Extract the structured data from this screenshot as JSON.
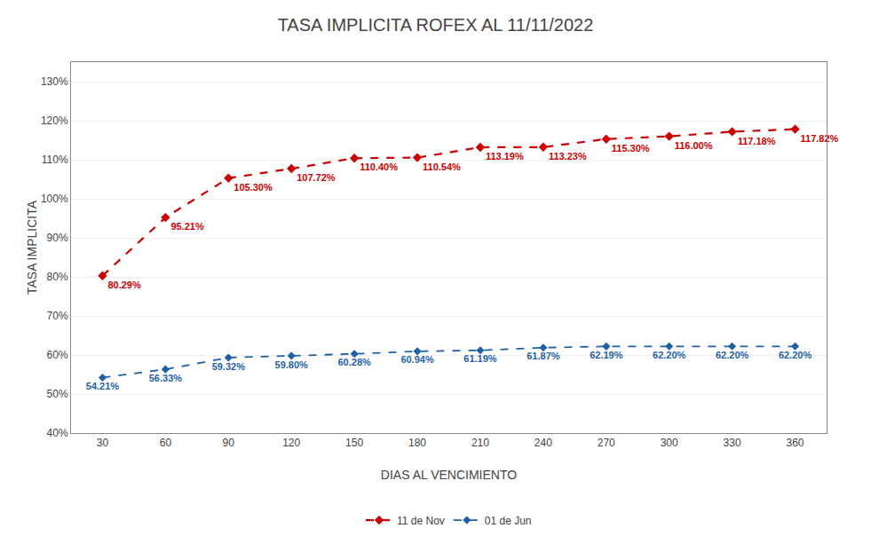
{
  "chart_data": {
    "type": "line",
    "title": "TASA IMPLICITA ROFEX AL 11/11/2022",
    "x_label": "DIAS AL VENCIMIENTO",
    "y_label": "TASA IMPLICITA",
    "x": [
      30,
      60,
      90,
      120,
      150,
      180,
      210,
      240,
      270,
      300,
      330,
      360
    ],
    "series": [
      {
        "name": "11 de Nov",
        "color": "#cc0000",
        "line_style": "dashed",
        "marker": "diamond",
        "values": [
          80.29,
          95.21,
          105.3,
          107.72,
          110.4,
          110.54,
          113.19,
          113.23,
          115.3,
          116.0,
          117.18,
          117.82
        ],
        "value_labels": [
          "80.29%",
          "95.21%",
          "105.30%",
          "107.72%",
          "110.40%",
          "110.54%",
          "113.19%",
          "113.23%",
          "115.30%",
          "116.00%",
          "117.18%",
          "117.82%"
        ]
      },
      {
        "name": "01 de Jun",
        "color": "#1f5fa6",
        "line_style": "dashed",
        "marker": "diamond",
        "values": [
          54.21,
          56.33,
          59.32,
          59.8,
          60.28,
          60.94,
          61.19,
          61.87,
          62.19,
          62.2,
          62.2,
          62.2
        ],
        "value_labels": [
          "54.21%",
          "56.33%",
          "59.32%",
          "59.80%",
          "60.28%",
          "60.94%",
          "61.19%",
          "61.87%",
          "62.19%",
          "62.20%",
          "62.20%",
          "62.20%"
        ]
      }
    ],
    "xlim": [
      15,
      375
    ],
    "xticks": [
      30,
      60,
      90,
      120,
      150,
      180,
      210,
      240,
      270,
      300,
      330,
      360
    ],
    "ylim": [
      40,
      135
    ],
    "yticks": [
      {
        "value": 40,
        "label": "40%"
      },
      {
        "value": 50,
        "label": "50%"
      },
      {
        "value": 60,
        "label": "60%"
      },
      {
        "value": 70,
        "label": "70%"
      },
      {
        "value": 80,
        "label": "80%"
      },
      {
        "value": 90,
        "label": "90%"
      },
      {
        "value": 100,
        "label": "100%"
      },
      {
        "value": 110,
        "label": "110%"
      },
      {
        "value": 120,
        "label": "120%"
      },
      {
        "value": 130,
        "label": "130%"
      }
    ],
    "grid": "y",
    "legend": "bottom",
    "data_labels": true
  }
}
